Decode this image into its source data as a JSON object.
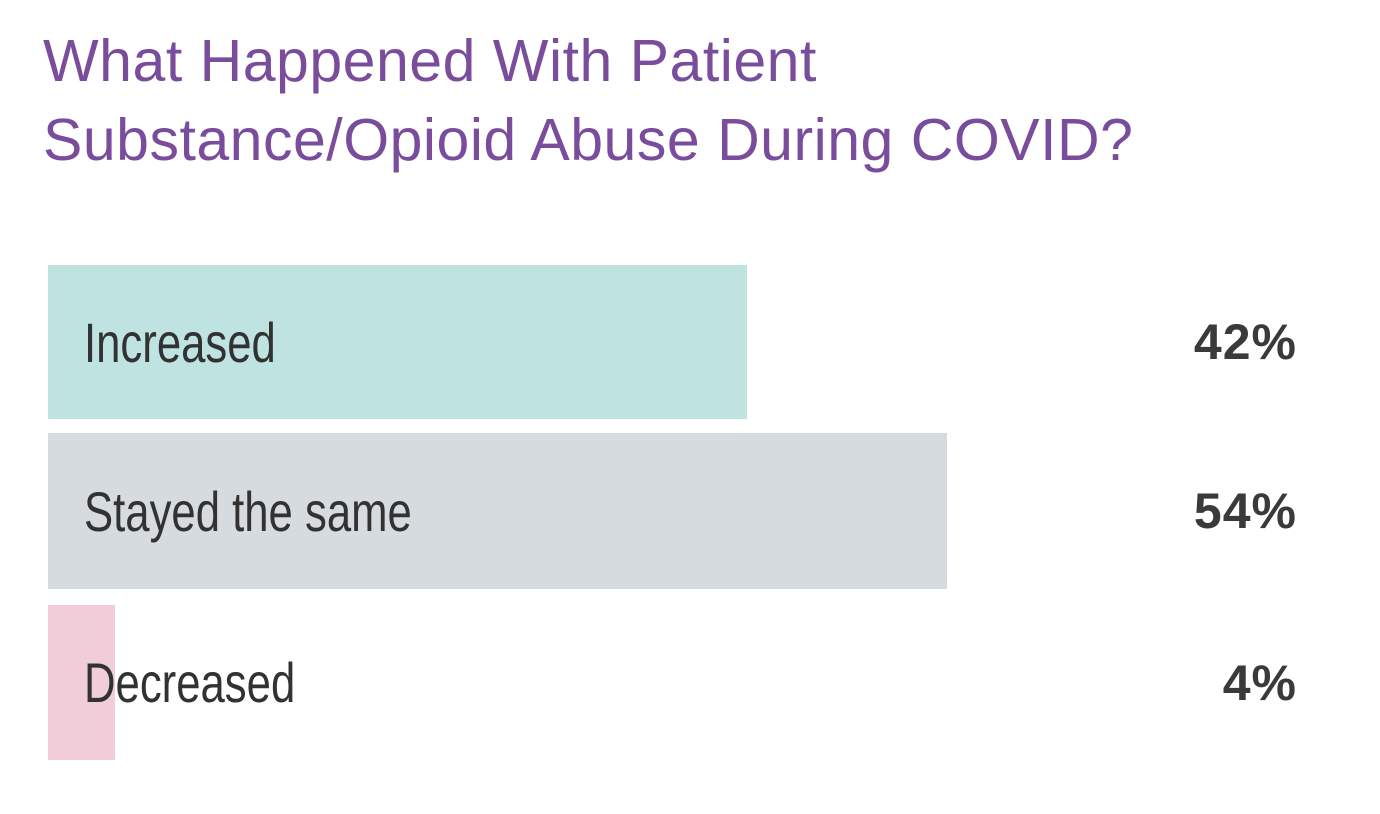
{
  "title": {
    "text": "What Happened With Patient Substance/Opioid Abuse During COVID?",
    "lines": [
      "What Happened With Patient",
      "Substance/Opioid Abuse During COVID?"
    ],
    "color": "#7a4d9c"
  },
  "chart_data": {
    "type": "bar",
    "orientation": "horizontal",
    "title": "What Happened With Patient Substance/Opioid Abuse During COVID?",
    "categories": [
      "Increased",
      "Stayed the same",
      "Decreased"
    ],
    "values": [
      42,
      54,
      4
    ],
    "unit": "%",
    "xlim": [
      0,
      100
    ],
    "grid": false,
    "legend": false,
    "rows": [
      {
        "label": "Increased",
        "value": 42,
        "value_label": "42%",
        "color": "#bee3e1"
      },
      {
        "label": "Stayed the same",
        "value": 54,
        "value_label": "54%",
        "color": "#d5dbde"
      },
      {
        "label": "Decreased",
        "value": 4,
        "value_label": "4%",
        "color": "#f0cdd8"
      }
    ],
    "label_color": "#323232",
    "value_color": "#3a3a3a"
  }
}
